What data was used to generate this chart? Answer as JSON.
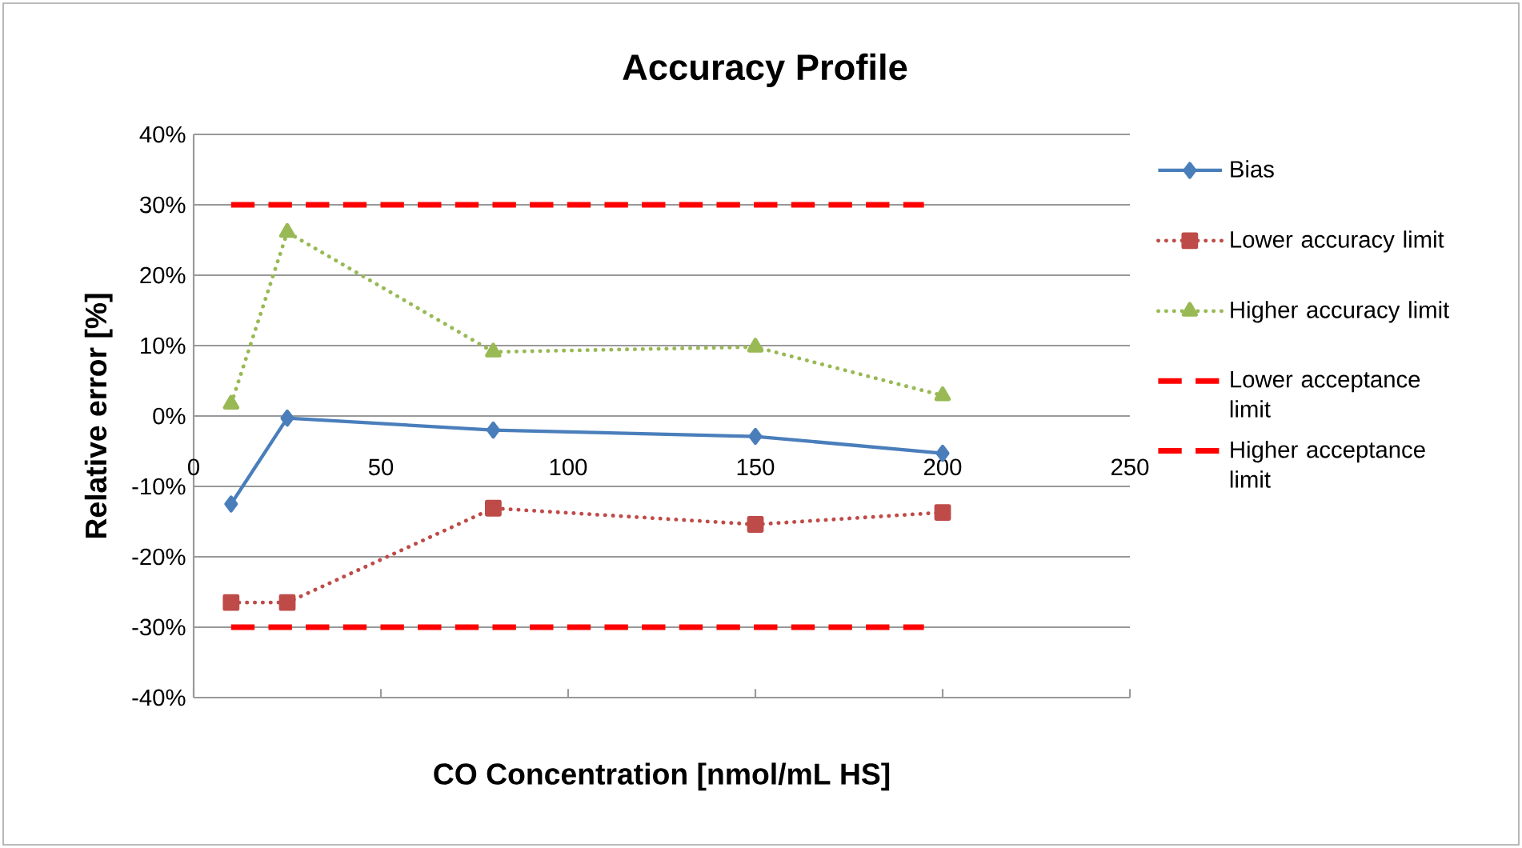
{
  "chart_data": {
    "type": "line",
    "title": "Accuracy Profile",
    "xlabel": "CO Concentration [nmol/mL HS]",
    "ylabel": "Relative error [%]",
    "xlim": [
      0,
      250
    ],
    "xticks": [
      0,
      50,
      100,
      150,
      200,
      250
    ],
    "ylim": [
      -40,
      40
    ],
    "yticks": [
      {
        "value": -40,
        "label": "-40%"
      },
      {
        "value": -30,
        "label": "-30%"
      },
      {
        "value": -20,
        "label": "-20%"
      },
      {
        "value": -10,
        "label": "-10%"
      },
      {
        "value": 0,
        "label": "0%"
      },
      {
        "value": 10,
        "label": "10%"
      },
      {
        "value": 20,
        "label": "20%"
      },
      {
        "value": 30,
        "label": "30%"
      },
      {
        "value": 40,
        "label": "40%"
      }
    ],
    "grid": "y",
    "legend": "right",
    "series": [
      {
        "name": "Bias",
        "color": "#4a7ebb",
        "marker": "diamond",
        "line_style": "solid",
        "x": [
          10,
          25,
          80,
          150,
          200
        ],
        "values": [
          -12.5,
          -0.3,
          -2.0,
          -2.9,
          -5.3
        ]
      },
      {
        "name": "Lower accuracy limit",
        "color": "#be4b48",
        "marker": "square",
        "line_style": "dotted",
        "x": [
          10,
          25,
          80,
          150,
          200
        ],
        "values": [
          -26.5,
          -26.5,
          -13.1,
          -15.4,
          -13.7
        ]
      },
      {
        "name": "Higher accuracy limit",
        "color": "#98b954",
        "marker": "triangle",
        "line_style": "dotted",
        "x": [
          10,
          25,
          80,
          150,
          200
        ],
        "values": [
          1.7,
          26.1,
          9.1,
          9.8,
          2.9
        ]
      },
      {
        "name": "Lower acceptance limit",
        "color": "#ff0000",
        "marker": "none",
        "line_style": "dashed",
        "x": [
          10,
          195
        ],
        "values": [
          -30,
          -30
        ]
      },
      {
        "name": "Higher acceptance limit",
        "color": "#ff0000",
        "marker": "none",
        "line_style": "dashed",
        "x": [
          10,
          195
        ],
        "values": [
          30,
          30
        ]
      }
    ]
  }
}
